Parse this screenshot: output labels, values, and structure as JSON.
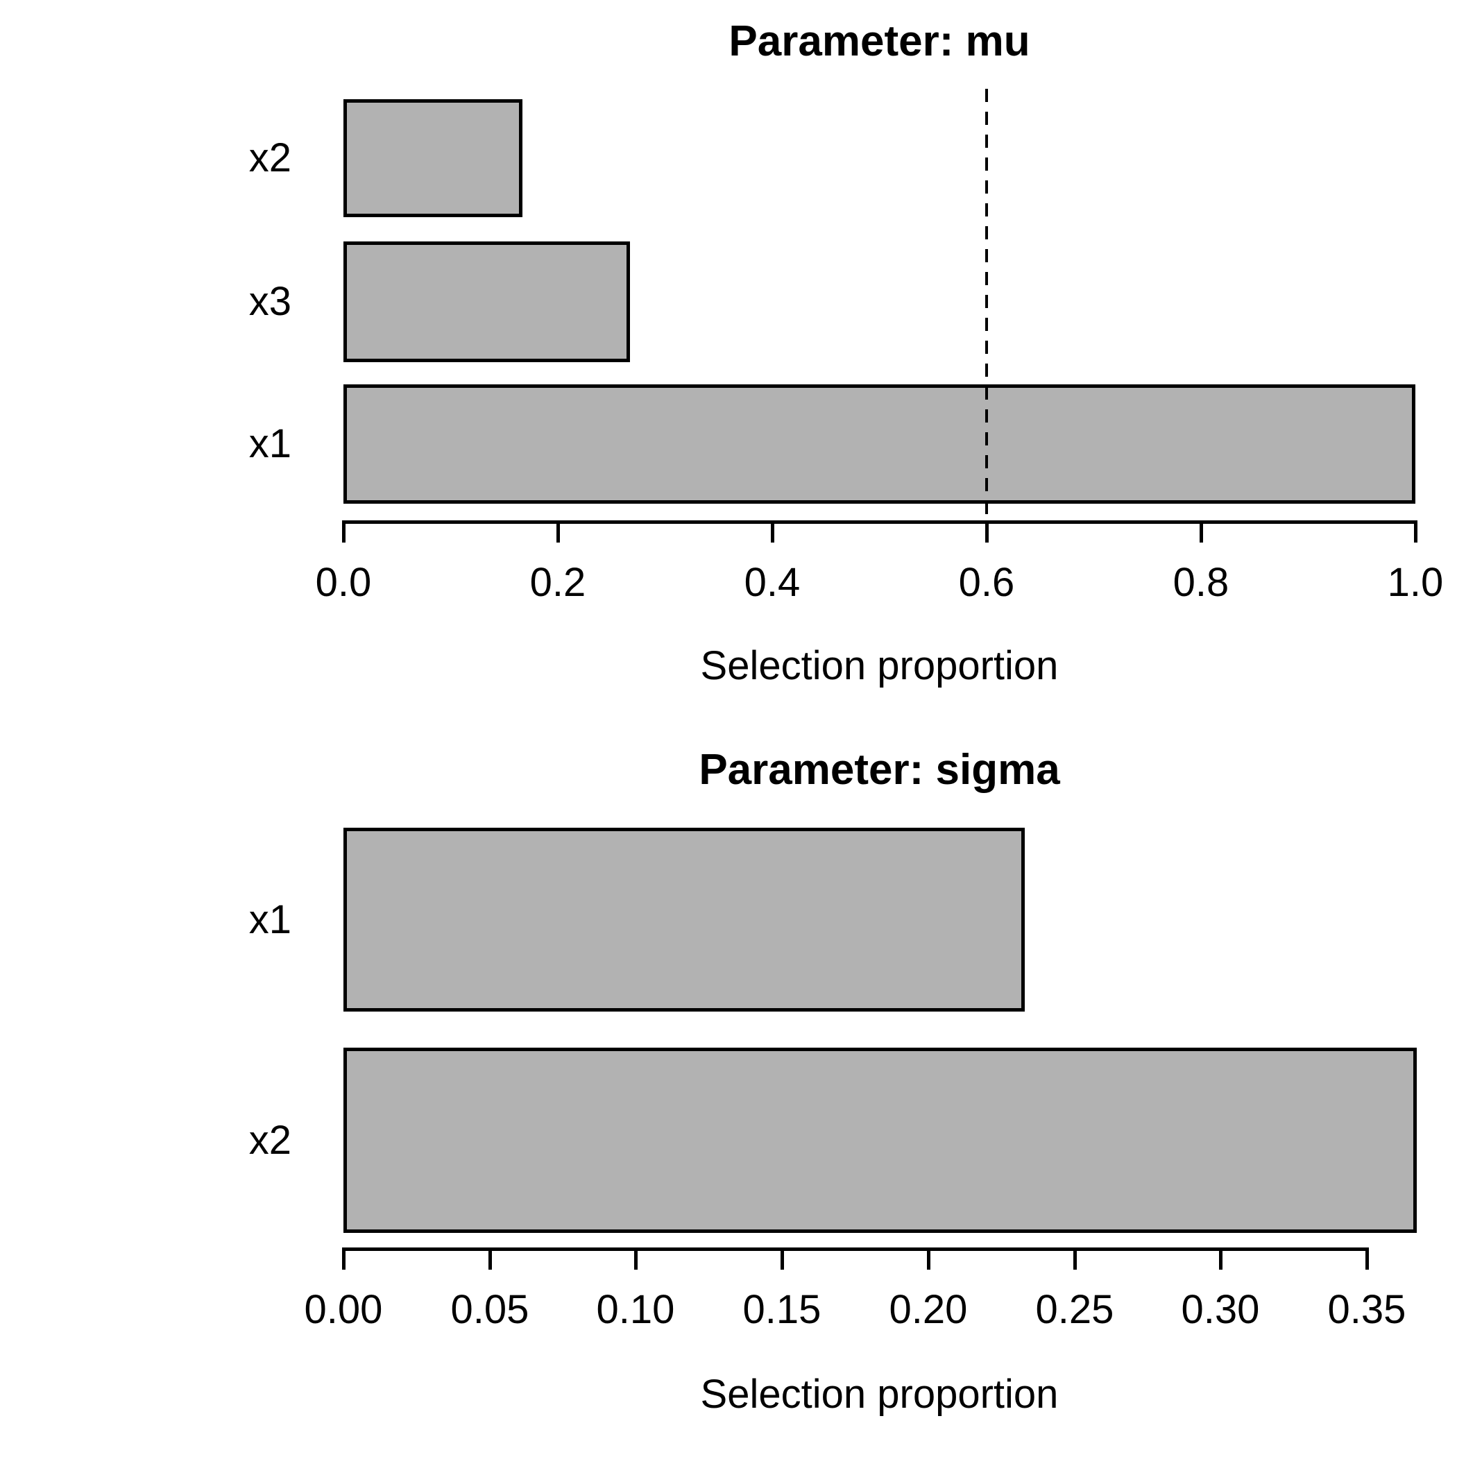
{
  "page": {
    "background": "#ffffff",
    "text_color": "#000000"
  },
  "chart_data": [
    {
      "type": "bar",
      "orientation": "horizontal",
      "title": "Parameter: mu",
      "xlabel": "Selection proportion",
      "categories": [
        "x2",
        "x3",
        "x1"
      ],
      "values": [
        0.167,
        0.267,
        1.0
      ],
      "xlim": [
        0.0,
        1.0
      ],
      "xticks": {
        "values": [
          0.0,
          0.2,
          0.4,
          0.6,
          0.8,
          1.0
        ],
        "labels": [
          "0.0",
          "0.2",
          "0.4",
          "0.6",
          "0.8",
          "1.0"
        ]
      },
      "threshold": 0.6,
      "threshold_style": "dashed",
      "bar_fill": "#b2b2b2",
      "bar_border": "#000000",
      "axis_color": "#000000",
      "grid": "off",
      "legend": "none"
    },
    {
      "type": "bar",
      "orientation": "horizontal",
      "title": "Parameter: sigma",
      "xlabel": "Selection proportion",
      "categories": [
        "x1",
        "x2"
      ],
      "values": [
        0.233,
        0.367
      ],
      "xlim": [
        0.0,
        0.37
      ],
      "xticks": {
        "values": [
          0.0,
          0.05,
          0.1,
          0.15,
          0.2,
          0.25,
          0.3,
          0.35
        ],
        "labels": [
          "0.00",
          "0.05",
          "0.10",
          "0.15",
          "0.20",
          "0.25",
          "0.30",
          "0.35"
        ]
      },
      "threshold": null,
      "threshold_style": "none",
      "bar_fill": "#b2b2b2",
      "bar_border": "#000000",
      "axis_color": "#000000",
      "grid": "off",
      "legend": "none"
    }
  ]
}
